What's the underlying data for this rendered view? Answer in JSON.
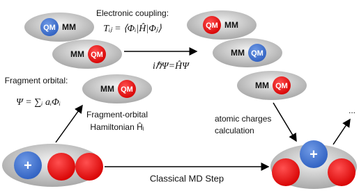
{
  "molecules": [
    {
      "left": "QM",
      "right": "MM"
    },
    {
      "left": "MM",
      "right": "QM"
    },
    {
      "left": "MM",
      "right": "QM"
    },
    {
      "left": "QM",
      "right": "MM"
    },
    {
      "left": "MM",
      "right": "QM"
    },
    {
      "left": "MM",
      "right": "QM"
    }
  ],
  "coupling": {
    "title": "Electronic coupling:",
    "formula": "Tᵢⱼ = ⟨Φᵢ|Ĥ|Φⱼ⟩"
  },
  "propagation": "iℏΨ=ĤΨ",
  "fragment": {
    "title": "Fragment orbital:",
    "formula": "Ψ = ∑ᵢ aᵢΦᵢ"
  },
  "hamiltonian": [
    "Fragment-orbital",
    "Hamiltonian Ĥᵢ"
  ],
  "charges": [
    "atomic charges",
    "calculation"
  ],
  "plus": "+",
  "ellipsis": "...",
  "md_step": "Classical MD Step"
}
